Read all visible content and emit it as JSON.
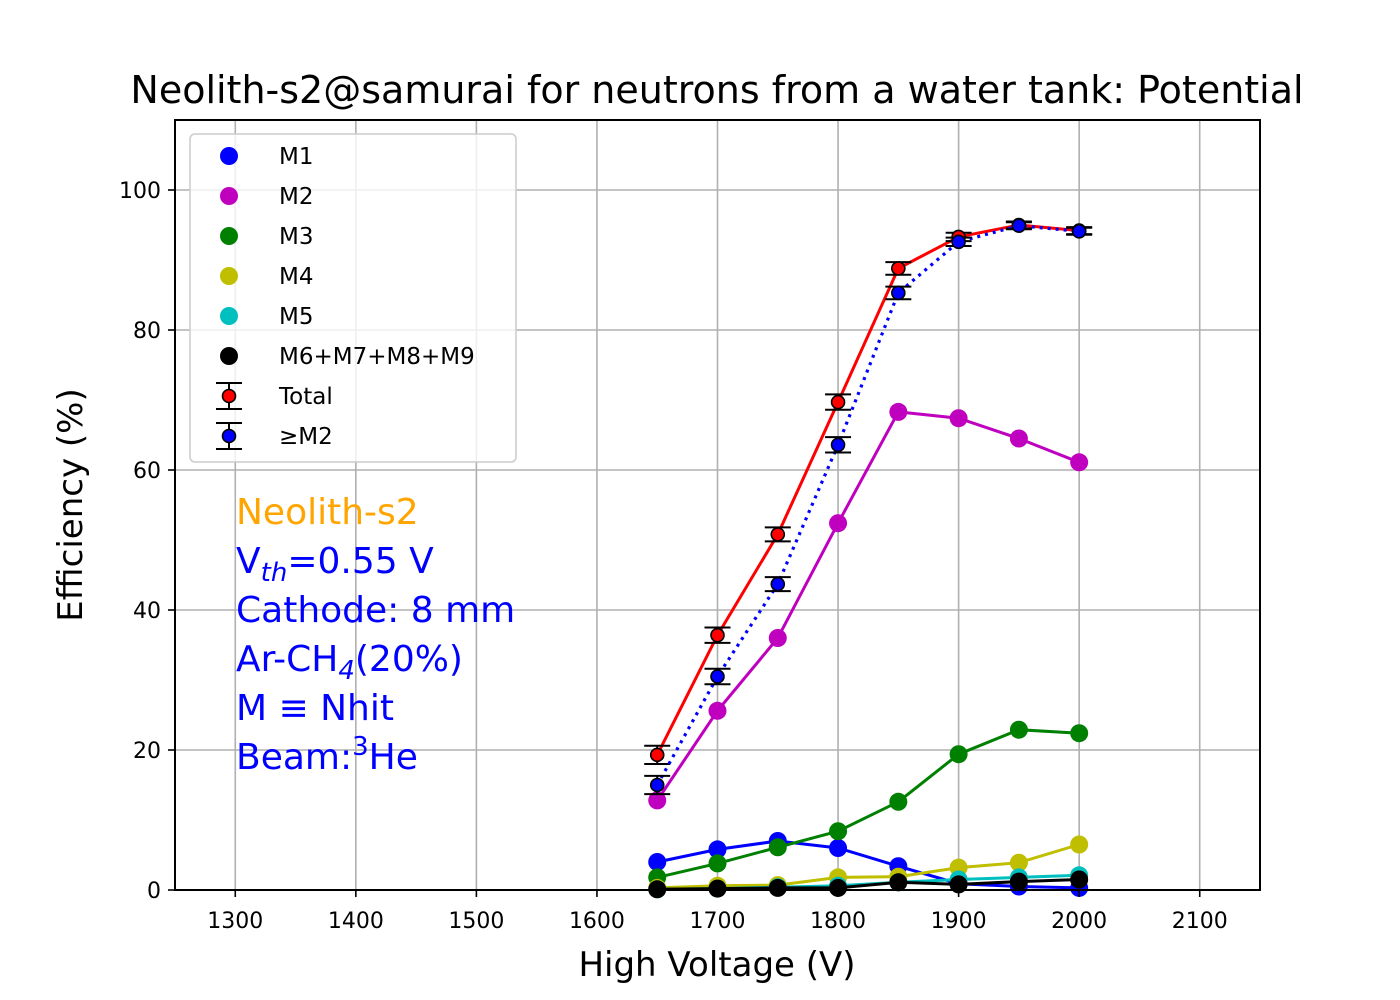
{
  "chart_data": {
    "type": "line",
    "title": "Neolith-s2@samurai for neutrons from a water tank: Potential",
    "xlabel": "High Voltage (V)",
    "ylabel": "Efficiency (%)",
    "xlim": [
      1250,
      2150
    ],
    "ylim": [
      0,
      110
    ],
    "xticks": [
      1300,
      1400,
      1500,
      1600,
      1700,
      1800,
      1900,
      2000,
      2100
    ],
    "yticks": [
      0,
      20,
      40,
      60,
      80,
      100
    ],
    "grid": true,
    "legend_position": "upper-left",
    "x": [
      1650,
      1700,
      1750,
      1800,
      1850,
      1900,
      1950,
      2000
    ],
    "series": [
      {
        "name": "M1",
        "color": "#0000ff",
        "marker": "circle",
        "line": "solid",
        "values": [
          4.0,
          5.8,
          7.0,
          6.0,
          3.4,
          0.9,
          0.5,
          0.3
        ]
      },
      {
        "name": "M2",
        "color": "#bf00bf",
        "marker": "circle",
        "line": "solid",
        "values": [
          12.8,
          25.6,
          36.0,
          52.4,
          68.3,
          67.4,
          64.5,
          61.1
        ]
      },
      {
        "name": "M3",
        "color": "#008000",
        "marker": "circle",
        "line": "solid",
        "values": [
          1.8,
          3.8,
          6.1,
          8.4,
          12.6,
          19.4,
          22.9,
          22.4
        ]
      },
      {
        "name": "M4",
        "color": "#bfbf00",
        "marker": "circle",
        "line": "solid",
        "values": [
          0.3,
          0.6,
          0.7,
          1.8,
          1.9,
          3.2,
          3.9,
          6.5
        ]
      },
      {
        "name": "M5",
        "color": "#00bfbf",
        "marker": "circle",
        "line": "solid",
        "values": [
          0.1,
          0.2,
          0.4,
          0.6,
          1.1,
          1.5,
          1.8,
          2.1
        ]
      },
      {
        "name": "M6+M7+M8+M9",
        "color": "#000000",
        "marker": "circle",
        "line": "solid",
        "values": [
          0.1,
          0.2,
          0.3,
          0.3,
          1.1,
          0.8,
          1.2,
          1.5
        ]
      },
      {
        "name": "Total",
        "color": "#ff0000",
        "marker": "circle-errorbar",
        "line": "solid",
        "values": [
          19.3,
          36.4,
          50.8,
          69.7,
          88.8,
          93.3,
          95.0,
          94.2
        ],
        "errors": [
          1.3,
          1.1,
          1.0,
          1.1,
          0.9,
          0.6,
          0.5,
          0.5
        ]
      },
      {
        "name": "≥M2",
        "color": "#0000ff",
        "marker": "circle-errorbar",
        "line": "dotted",
        "values": [
          15.0,
          30.5,
          43.7,
          63.6,
          85.3,
          92.6,
          94.9,
          94.1
        ],
        "errors": [
          1.3,
          1.1,
          1.0,
          1.1,
          0.9,
          0.6,
          0.5,
          0.5
        ]
      }
    ],
    "annotations": [
      {
        "text": "Neolith-s2",
        "color": "#ffa500"
      },
      {
        "text": "V",
        "sub": "th",
        "after": "=0.55 V",
        "color": "#0000ff"
      },
      {
        "text": "Cathode: 8 mm",
        "color": "#0000ff"
      },
      {
        "text": "Ar-CH",
        "sub": "4",
        "after": "(20%)",
        "color": "#0000ff"
      },
      {
        "text": "M ≡ Nhit",
        "color": "#0000ff"
      },
      {
        "text": "Beam:",
        "sup": "3",
        "after": "He",
        "color": "#0000ff"
      }
    ]
  }
}
